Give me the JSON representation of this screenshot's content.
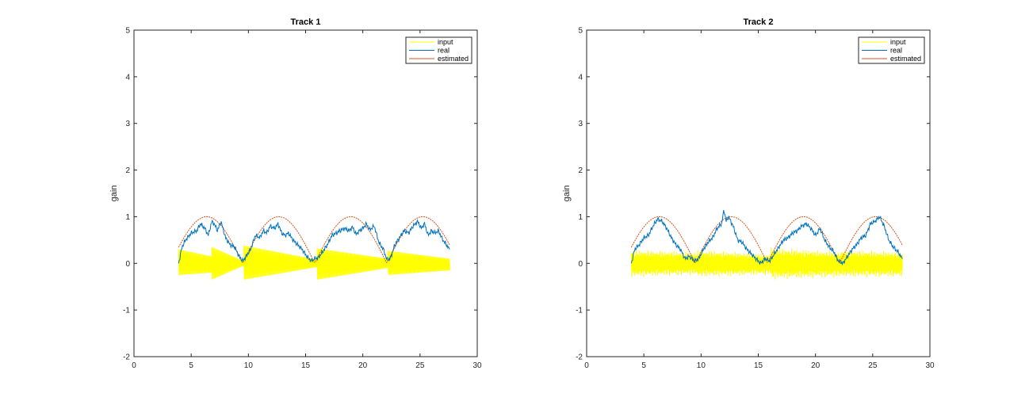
{
  "colors": {
    "input": "#FFFF00",
    "real": "#0072BD",
    "estimated": "#D95319",
    "axis": "#262626",
    "background": "#FFFFFF"
  },
  "chart_data": [
    {
      "type": "line",
      "title": "Track 1",
      "xlabel": "",
      "ylabel": "gain",
      "xlim": [
        0,
        30
      ],
      "ylim": [
        -2,
        5
      ],
      "xticks": [
        "0",
        "5",
        "10",
        "15",
        "20",
        "25",
        "30"
      ],
      "yticks": [
        "-2",
        "-1",
        "0",
        "1",
        "2",
        "3",
        "4",
        "5"
      ],
      "grid": false,
      "legend_position": "top-right",
      "legend": [
        "input",
        "real",
        "estimated"
      ],
      "x_start": 3.9,
      "x_end": 27.6,
      "estimated_period": 6.3,
      "estimated_peak": 1.0,
      "input_envelope": [
        {
          "x": [
            3.9,
            6.8
          ],
          "top": [
            0.3,
            0.15
          ],
          "bottom": [
            -0.25,
            -0.2
          ]
        },
        {
          "x": [
            6.8,
            9.6
          ],
          "top": [
            0.35,
            0.05
          ],
          "bottom": [
            -0.35,
            -0.05
          ]
        },
        {
          "x": [
            9.6,
            16.0
          ],
          "top": [
            0.38,
            0.08
          ],
          "bottom": [
            -0.35,
            -0.08
          ]
        },
        {
          "x": [
            16.0,
            22.2
          ],
          "top": [
            0.32,
            0.1
          ],
          "bottom": [
            -0.35,
            -0.1
          ]
        },
        {
          "x": [
            22.2,
            27.6
          ],
          "top": [
            0.27,
            0.1
          ],
          "bottom": [
            -0.25,
            -0.15
          ]
        }
      ],
      "series": [
        {
          "name": "real",
          "x": [
            3.9,
            4.2,
            4.5,
            5.0,
            5.5,
            5.8,
            6.2,
            6.5,
            6.8,
            7.0,
            7.3,
            7.6,
            8.0,
            8.4,
            8.8,
            9.2,
            9.5,
            9.8,
            10.2,
            10.6,
            11.0,
            11.3,
            11.6,
            11.9,
            12.3,
            12.6,
            12.9,
            13.2,
            13.5,
            13.9,
            14.3,
            14.7,
            15.1,
            15.5,
            15.8,
            16.1,
            16.5,
            16.9,
            17.3,
            17.7,
            18.0,
            18.4,
            18.8,
            19.1,
            19.4,
            19.7,
            20.0,
            20.3,
            20.6,
            21.0,
            21.4,
            21.8,
            22.1,
            22.4,
            22.8,
            23.2,
            23.6,
            24.0,
            24.4,
            24.8,
            25.1,
            25.4,
            25.7,
            26.0,
            26.3,
            26.6,
            27.0,
            27.3,
            27.6
          ],
          "y": [
            0.0,
            0.35,
            0.5,
            0.65,
            0.7,
            0.85,
            0.75,
            0.6,
            0.9,
            0.85,
            0.7,
            0.9,
            0.55,
            0.4,
            0.35,
            0.15,
            0.05,
            0.15,
            0.3,
            0.6,
            0.55,
            0.7,
            0.65,
            0.8,
            0.75,
            0.85,
            0.65,
            0.6,
            0.65,
            0.5,
            0.4,
            0.3,
            0.15,
            0.05,
            0.1,
            0.12,
            0.25,
            0.4,
            0.6,
            0.65,
            0.7,
            0.75,
            0.7,
            0.78,
            0.62,
            0.7,
            0.75,
            0.85,
            0.72,
            0.8,
            0.45,
            0.3,
            0.08,
            0.1,
            0.4,
            0.55,
            0.7,
            0.65,
            0.8,
            0.9,
            0.75,
            0.85,
            0.6,
            0.7,
            0.65,
            0.7,
            0.5,
            0.4,
            0.3
          ]
        }
      ]
    },
    {
      "type": "line",
      "title": "Track 2",
      "xlabel": "",
      "ylabel": "gain",
      "xlim": [
        0,
        30
      ],
      "ylim": [
        -2,
        5
      ],
      "xticks": [
        "0",
        "5",
        "10",
        "15",
        "20",
        "25",
        "30"
      ],
      "yticks": [
        "-2",
        "-1",
        "0",
        "1",
        "2",
        "3",
        "4",
        "5"
      ],
      "grid": false,
      "legend_position": "top-right",
      "legend": [
        "input",
        "real",
        "estimated"
      ],
      "x_start": 3.9,
      "x_end": 27.6,
      "estimated_period": 6.3,
      "estimated_peak": 1.0,
      "input_envelope": [
        {
          "x": [
            3.9,
            9.7
          ],
          "top": [
            0.3,
            0.25
          ],
          "bottom": [
            -0.3,
            -0.25
          ]
        },
        {
          "x": [
            9.7,
            16.1
          ],
          "top": [
            0.3,
            0.2
          ],
          "bottom": [
            -0.3,
            -0.25
          ]
        },
        {
          "x": [
            16.1,
            22.3
          ],
          "top": [
            0.35,
            0.25
          ],
          "bottom": [
            -0.35,
            -0.3
          ]
        },
        {
          "x": [
            22.3,
            27.6
          ],
          "top": [
            0.3,
            0.25
          ],
          "bottom": [
            -0.3,
            -0.3
          ]
        }
      ],
      "series": [
        {
          "name": "real",
          "x": [
            3.9,
            4.2,
            4.6,
            5.0,
            5.4,
            5.8,
            6.2,
            6.6,
            7.0,
            7.4,
            7.8,
            8.2,
            8.6,
            9.0,
            9.4,
            9.8,
            10.2,
            10.6,
            11.0,
            11.4,
            11.8,
            12.0,
            12.2,
            12.4,
            12.6,
            12.8,
            13.2,
            13.6,
            14.0,
            14.4,
            14.8,
            15.2,
            15.6,
            16.0,
            16.4,
            16.8,
            17.2,
            17.6,
            18.0,
            18.4,
            18.8,
            19.2,
            19.6,
            20.0,
            20.4,
            20.8,
            21.2,
            21.6,
            22.0,
            22.4,
            22.8,
            23.2,
            23.6,
            24.0,
            24.4,
            24.8,
            25.2,
            25.6,
            26.0,
            26.4,
            26.8,
            27.2,
            27.6
          ],
          "y": [
            0.0,
            0.3,
            0.4,
            0.55,
            0.6,
            0.8,
            0.95,
            0.9,
            0.75,
            0.55,
            0.4,
            0.3,
            0.1,
            0.15,
            0.05,
            0.1,
            0.3,
            0.45,
            0.55,
            0.75,
            0.85,
            1.15,
            0.9,
            1.0,
            0.9,
            0.8,
            0.5,
            0.45,
            0.3,
            0.2,
            0.1,
            0.0,
            0.1,
            0.05,
            0.2,
            0.35,
            0.5,
            0.55,
            0.65,
            0.7,
            0.8,
            0.85,
            0.75,
            0.6,
            0.75,
            0.5,
            0.35,
            0.25,
            0.05,
            0.0,
            0.15,
            0.3,
            0.4,
            0.55,
            0.6,
            0.85,
            0.9,
            1.0,
            0.8,
            0.5,
            0.35,
            0.25,
            0.1
          ]
        }
      ]
    }
  ]
}
